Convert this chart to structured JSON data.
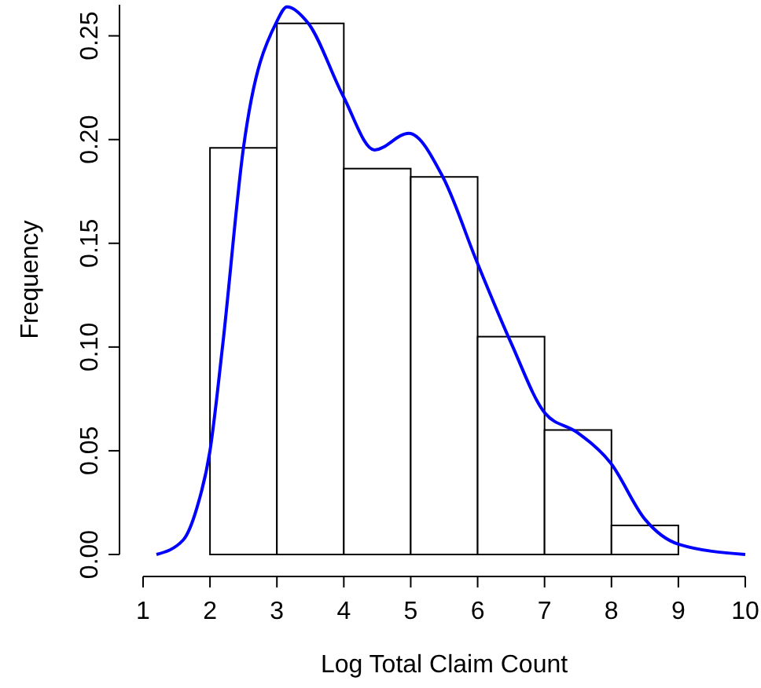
{
  "chart_data": {
    "type": "histogram",
    "xlabel": "Log Total Claim Count",
    "ylabel": "Frequency",
    "xlim": [
      1,
      10
    ],
    "ylim": [
      0,
      0.265
    ],
    "xticks": [
      1,
      2,
      3,
      4,
      5,
      6,
      7,
      8,
      9,
      10
    ],
    "yticks": [
      {
        "value": 0,
        "label": "0.00"
      },
      0.05,
      {
        "value": 0.1,
        "label": "0.10"
      },
      0.15,
      {
        "value": 0.2,
        "label": "0.20"
      },
      0.25
    ],
    "grid": false,
    "series": [
      {
        "color": "#ffffff",
        "bins": [
          1,
          2,
          3,
          4,
          5,
          6,
          7,
          8,
          9,
          10
        ],
        "values": [
          0,
          0.196,
          0.256,
          0.186,
          0.182,
          0.105,
          0.06,
          0.014,
          0
        ]
      },
      {
        "type": "line",
        "color": "#0000ff",
        "x": [
          1.2,
          1.6,
          1.8,
          2,
          2.19,
          2.5,
          3,
          3.15,
          3.47,
          3.99,
          4.46,
          4.97,
          5.48,
          5.99,
          6.5,
          7.01,
          7.48,
          7.99,
          8.5,
          9,
          10
        ],
        "values": [
          0,
          0.007,
          0.022,
          0.05,
          0.101,
          0.196,
          0.257,
          0.264,
          0.256,
          0.221,
          0.195,
          0.203,
          0.182,
          0.141,
          0.102,
          0.068,
          0.059,
          0.044,
          0.017,
          0.005,
          0
        ]
      }
    ]
  }
}
